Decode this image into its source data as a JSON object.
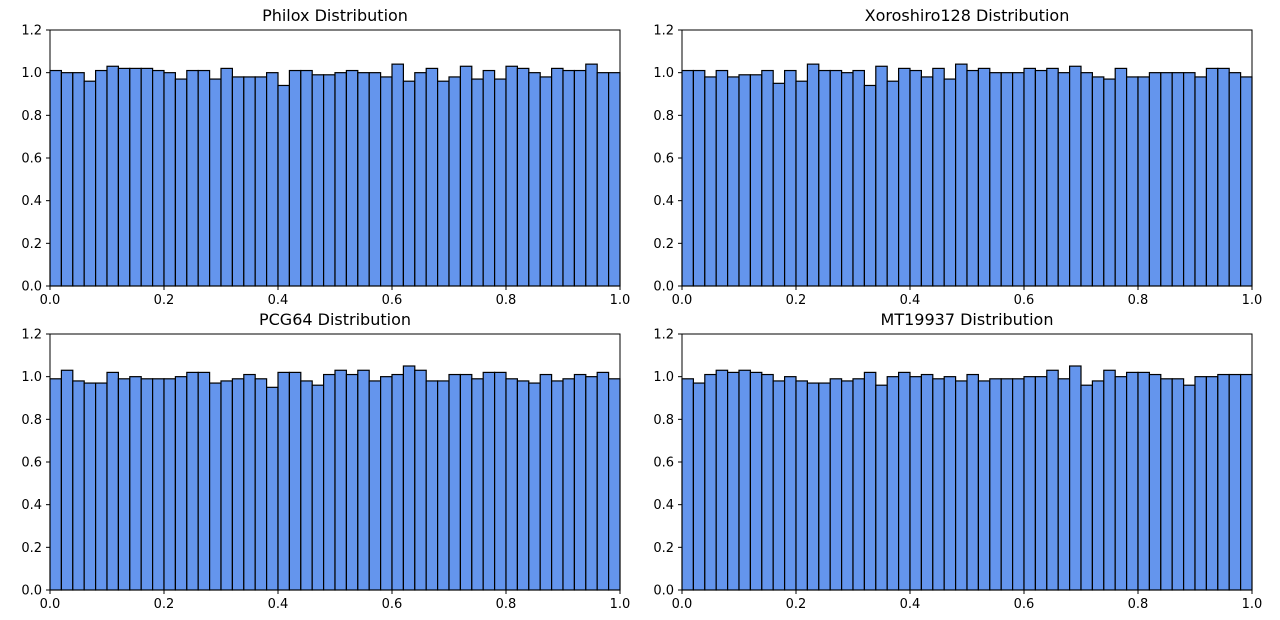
{
  "chart_data": [
    {
      "type": "bar",
      "title": "Philox Distribution",
      "xlabel": "",
      "ylabel": "",
      "xlim": [
        0.0,
        1.0
      ],
      "ylim": [
        0.0,
        1.2
      ],
      "xticks": [
        "0.0",
        "0.2",
        "0.4",
        "0.6",
        "0.8",
        "1.0"
      ],
      "yticks": [
        "0.0",
        "0.2",
        "0.4",
        "0.6",
        "0.8",
        "1.0",
        "1.2"
      ],
      "bar_color": "#6495ED",
      "bins": 50,
      "values": [
        1.01,
        1.0,
        1.0,
        0.96,
        1.01,
        1.03,
        1.02,
        1.02,
        1.02,
        1.01,
        1.0,
        0.97,
        1.01,
        1.01,
        0.97,
        1.02,
        0.98,
        0.98,
        0.98,
        1.0,
        0.94,
        1.01,
        1.01,
        0.99,
        0.99,
        1.0,
        1.01,
        1.0,
        1.0,
        0.98,
        1.04,
        0.96,
        1.0,
        1.02,
        0.96,
        0.98,
        1.03,
        0.97,
        1.01,
        0.97,
        1.03,
        1.02,
        1.0,
        0.98,
        1.02,
        1.01,
        1.01,
        1.04,
        1.0,
        1.0
      ]
    },
    {
      "type": "bar",
      "title": "Xoroshiro128 Distribution",
      "xlabel": "",
      "ylabel": "",
      "xlim": [
        0.0,
        1.0
      ],
      "ylim": [
        0.0,
        1.2
      ],
      "xticks": [
        "0.0",
        "0.2",
        "0.4",
        "0.6",
        "0.8",
        "1.0"
      ],
      "yticks": [
        "0.0",
        "0.2",
        "0.4",
        "0.6",
        "0.8",
        "1.0",
        "1.2"
      ],
      "bar_color": "#6495ED",
      "bins": 50,
      "values": [
        1.01,
        1.01,
        0.98,
        1.01,
        0.98,
        0.99,
        0.99,
        1.01,
        0.95,
        1.01,
        0.96,
        1.04,
        1.01,
        1.01,
        1.0,
        1.01,
        0.94,
        1.03,
        0.96,
        1.02,
        1.01,
        0.98,
        1.02,
        0.97,
        1.04,
        1.01,
        1.02,
        1.0,
        1.0,
        1.0,
        1.02,
        1.01,
        1.02,
        1.0,
        1.03,
        1.0,
        0.98,
        0.97,
        1.02,
        0.98,
        0.98,
        1.0,
        1.0,
        1.0,
        1.0,
        0.98,
        1.02,
        1.02,
        1.0,
        0.98
      ]
    },
    {
      "type": "bar",
      "title": "PCG64 Distribution",
      "xlabel": "",
      "ylabel": "",
      "xlim": [
        0.0,
        1.0
      ],
      "ylim": [
        0.0,
        1.2
      ],
      "xticks": [
        "0.0",
        "0.2",
        "0.4",
        "0.6",
        "0.8",
        "1.0"
      ],
      "yticks": [
        "0.0",
        "0.2",
        "0.4",
        "0.6",
        "0.8",
        "1.0",
        "1.2"
      ],
      "bar_color": "#6495ED",
      "bins": 50,
      "values": [
        0.99,
        1.03,
        0.98,
        0.97,
        0.97,
        1.02,
        0.99,
        1.0,
        0.99,
        0.99,
        0.99,
        1.0,
        1.02,
        1.02,
        0.97,
        0.98,
        0.99,
        1.01,
        0.99,
        0.95,
        1.02,
        1.02,
        0.98,
        0.96,
        1.01,
        1.03,
        1.01,
        1.03,
        0.98,
        1.0,
        1.01,
        1.05,
        1.03,
        0.98,
        0.98,
        1.01,
        1.01,
        0.99,
        1.02,
        1.02,
        0.99,
        0.98,
        0.97,
        1.01,
        0.98,
        0.99,
        1.01,
        1.0,
        1.02,
        0.99
      ]
    },
    {
      "type": "bar",
      "title": "MT19937 Distribution",
      "xlabel": "",
      "ylabel": "",
      "xlim": [
        0.0,
        1.0
      ],
      "ylim": [
        0.0,
        1.2
      ],
      "xticks": [
        "0.0",
        "0.2",
        "0.4",
        "0.6",
        "0.8",
        "1.0"
      ],
      "yticks": [
        "0.0",
        "0.2",
        "0.4",
        "0.6",
        "0.8",
        "1.0",
        "1.2"
      ],
      "bar_color": "#6495ED",
      "bins": 50,
      "values": [
        0.99,
        0.97,
        1.01,
        1.03,
        1.02,
        1.03,
        1.02,
        1.01,
        0.98,
        1.0,
        0.98,
        0.97,
        0.97,
        0.99,
        0.98,
        0.99,
        1.02,
        0.96,
        1.0,
        1.02,
        1.0,
        1.01,
        0.99,
        1.0,
        0.98,
        1.01,
        0.98,
        0.99,
        0.99,
        0.99,
        1.0,
        1.0,
        1.03,
        0.99,
        1.05,
        0.96,
        0.98,
        1.03,
        1.0,
        1.02,
        1.02,
        1.01,
        0.99,
        0.99,
        0.96,
        1.0,
        1.0,
        1.01,
        1.01,
        1.01
      ]
    }
  ]
}
